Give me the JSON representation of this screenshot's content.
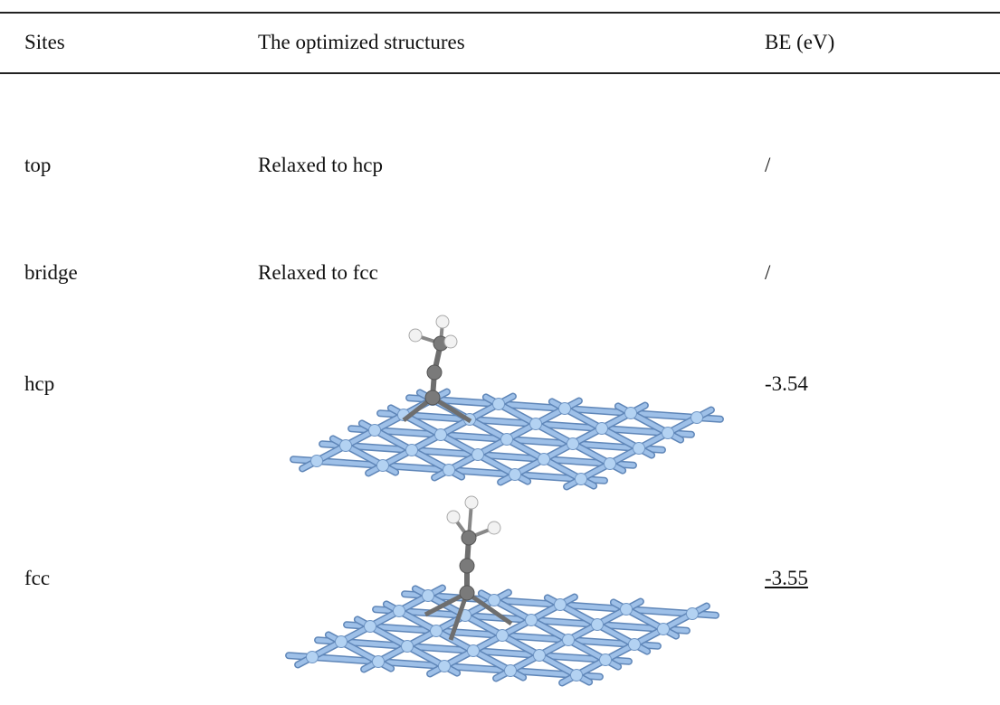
{
  "table": {
    "header": [
      "Sites",
      "The optimized structures",
      "BE (eV)"
    ],
    "rows": [
      {
        "site": "top",
        "structure": "Relaxed to hcp",
        "be": "/"
      },
      {
        "site": "bridge",
        "structure": "Relaxed to fcc",
        "be": "/"
      },
      {
        "site": "hcp",
        "be": "-3.54"
      },
      {
        "site": "fcc",
        "be": "-3.55"
      }
    ]
  }
}
